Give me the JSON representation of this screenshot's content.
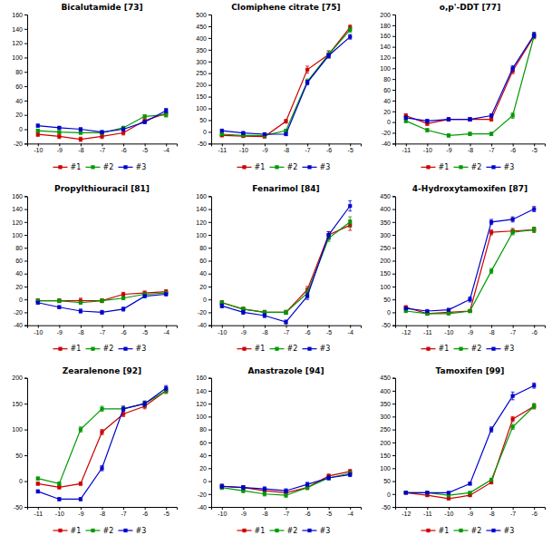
{
  "chart_data": [
    {
      "type": "line",
      "title": "Bicalutamide [73]",
      "x": [
        -10,
        -9,
        -8,
        -7,
        -6,
        -5,
        -4
      ],
      "xlim": [
        -10.5,
        -3.5
      ],
      "xticks": [
        -10,
        -9,
        -8,
        -7,
        -6,
        -5,
        -4
      ],
      "ylim": [
        -20,
        160
      ],
      "yticks": [
        -20,
        0,
        20,
        40,
        60,
        80,
        100,
        120,
        140,
        160
      ],
      "grid": false,
      "legend": "bottom",
      "series": [
        {
          "name": "#1",
          "color": "#cc0000",
          "marker": "square",
          "values": [
            -7,
            -10,
            -14,
            -10,
            -5,
            12,
            22
          ],
          "errors": [
            3,
            3,
            3,
            3,
            3,
            3,
            4
          ]
        },
        {
          "name": "#2",
          "color": "#009900",
          "marker": "square",
          "values": [
            -2,
            -4,
            -5,
            -5,
            2,
            18,
            20
          ],
          "errors": [
            2,
            2,
            2,
            2,
            2,
            2,
            3
          ]
        },
        {
          "name": "#3",
          "color": "#0000cc",
          "marker": "square",
          "values": [
            5,
            2,
            0,
            -4,
            0,
            10,
            26
          ],
          "errors": [
            2,
            2,
            2,
            2,
            2,
            2,
            3
          ]
        }
      ]
    },
    {
      "type": "line",
      "title": "Clomiphene citrate [75]",
      "x": [
        -11,
        -10,
        -9,
        -8,
        -7,
        -6,
        -5
      ],
      "xlim": [
        -11.5,
        -4.5
      ],
      "xticks": [
        -11,
        -10,
        -9,
        -8,
        -7,
        -6,
        -5
      ],
      "ylim": [
        -50,
        500
      ],
      "yticks": [
        -50,
        0,
        50,
        100,
        150,
        200,
        250,
        300,
        350,
        400,
        450,
        500
      ],
      "grid": false,
      "legend": "bottom",
      "series": [
        {
          "name": "#1",
          "color": "#cc0000",
          "marker": "square",
          "values": [
            -15,
            -18,
            -20,
            45,
            265,
            330,
            445
          ],
          "errors": [
            5,
            5,
            5,
            8,
            15,
            15,
            10
          ]
        },
        {
          "name": "#2",
          "color": "#009900",
          "marker": "square",
          "values": [
            -10,
            -15,
            -15,
            5,
            215,
            330,
            435
          ],
          "errors": [
            5,
            5,
            5,
            5,
            10,
            15,
            10
          ]
        },
        {
          "name": "#3",
          "color": "#0000cc",
          "marker": "square",
          "values": [
            5,
            -5,
            -10,
            -10,
            210,
            325,
            405
          ],
          "errors": [
            5,
            5,
            5,
            5,
            10,
            10,
            10
          ]
        }
      ]
    },
    {
      "type": "line",
      "title": "o,p'-DDT [77]",
      "x": [
        -11,
        -10,
        -9,
        -8,
        -7,
        -6,
        -5
      ],
      "xlim": [
        -11.5,
        -4.5
      ],
      "xticks": [
        -11,
        -10,
        -9,
        -8,
        -7,
        -6,
        -5
      ],
      "ylim": [
        -40,
        200
      ],
      "yticks": [
        -40,
        -20,
        0,
        20,
        40,
        60,
        80,
        100,
        120,
        140,
        160,
        180,
        200
      ],
      "grid": false,
      "legend": "bottom",
      "series": [
        {
          "name": "#1",
          "color": "#cc0000",
          "marker": "square",
          "values": [
            12,
            -3,
            5,
            5,
            5,
            95,
            160
          ],
          "errors": [
            3,
            3,
            3,
            3,
            3,
            5,
            5
          ]
        },
        {
          "name": "#2",
          "color": "#009900",
          "marker": "square",
          "values": [
            2,
            -15,
            -25,
            -22,
            -22,
            12,
            160
          ],
          "errors": [
            3,
            3,
            3,
            3,
            3,
            5,
            5
          ]
        },
        {
          "name": "#3",
          "color": "#0000cc",
          "marker": "square",
          "values": [
            8,
            2,
            5,
            5,
            12,
            100,
            162
          ],
          "errors": [
            3,
            3,
            3,
            3,
            3,
            5,
            5
          ]
        }
      ]
    },
    {
      "type": "line",
      "title": "Propylthiouracil [81]",
      "x": [
        -10,
        -9,
        -8,
        -7,
        -6,
        -5,
        -4
      ],
      "xlim": [
        -10.5,
        -3.5
      ],
      "xticks": [
        -10,
        -9,
        -8,
        -7,
        -6,
        -5,
        -4
      ],
      "ylim": [
        -40,
        160
      ],
      "yticks": [
        -40,
        -20,
        0,
        20,
        40,
        60,
        80,
        100,
        120,
        140,
        160
      ],
      "grid": false,
      "legend": "bottom",
      "series": [
        {
          "name": "#1",
          "color": "#cc0000",
          "marker": "square",
          "values": [
            -2,
            -2,
            -2,
            -2,
            8,
            10,
            12
          ],
          "errors": [
            3,
            3,
            4,
            3,
            3,
            3,
            3
          ]
        },
        {
          "name": "#2",
          "color": "#009900",
          "marker": "square",
          "values": [
            -2,
            -2,
            -5,
            -2,
            2,
            8,
            10
          ],
          "errors": [
            2,
            2,
            2,
            2,
            2,
            2,
            2
          ]
        },
        {
          "name": "#3",
          "color": "#0000cc",
          "marker": "square",
          "values": [
            -5,
            -12,
            -18,
            -20,
            -15,
            5,
            8
          ],
          "errors": [
            2,
            2,
            3,
            3,
            3,
            2,
            2
          ]
        }
      ]
    },
    {
      "type": "line",
      "title": "Fenarimol [84]",
      "x": [
        -10,
        -9,
        -8,
        -7,
        -6,
        -5,
        -4
      ],
      "xlim": [
        -10.5,
        -3.5
      ],
      "xticks": [
        -10,
        -9,
        -8,
        -7,
        -6,
        -5,
        -4
      ],
      "ylim": [
        -40,
        160
      ],
      "yticks": [
        -40,
        -20,
        0,
        20,
        40,
        60,
        80,
        100,
        120,
        140,
        160
      ],
      "grid": false,
      "legend": "bottom",
      "series": [
        {
          "name": "#1",
          "color": "#cc0000",
          "marker": "square",
          "values": [
            -5,
            -15,
            -20,
            -20,
            15,
            100,
            115
          ],
          "errors": [
            3,
            3,
            3,
            3,
            5,
            5,
            8
          ]
        },
        {
          "name": "#2",
          "color": "#009900",
          "marker": "square",
          "values": [
            -5,
            -15,
            -20,
            -20,
            10,
            95,
            120
          ],
          "errors": [
            3,
            3,
            3,
            3,
            5,
            5,
            8
          ]
        },
        {
          "name": "#3",
          "color": "#0000cc",
          "marker": "square",
          "values": [
            -10,
            -20,
            -25,
            -35,
            5,
            100,
            145
          ],
          "errors": [
            3,
            3,
            3,
            3,
            5,
            5,
            8
          ]
        }
      ]
    },
    {
      "type": "line",
      "title": "4-Hydroxytamoxifen [87]",
      "x": [
        -12,
        -11,
        -10,
        -9,
        -8,
        -7,
        -6
      ],
      "xlim": [
        -12.5,
        -5.5
      ],
      "xticks": [
        -12,
        -11,
        -10,
        -9,
        -8,
        -7,
        -6
      ],
      "ylim": [
        -50,
        450
      ],
      "yticks": [
        -50,
        0,
        50,
        100,
        150,
        200,
        250,
        300,
        350,
        400,
        450
      ],
      "grid": false,
      "legend": "bottom",
      "series": [
        {
          "name": "#1",
          "color": "#cc0000",
          "marker": "square",
          "values": [
            20,
            -5,
            0,
            5,
            310,
            315,
            320
          ],
          "errors": [
            3,
            3,
            3,
            3,
            10,
            10,
            10
          ]
        },
        {
          "name": "#2",
          "color": "#009900",
          "marker": "square",
          "values": [
            5,
            -5,
            -5,
            5,
            160,
            310,
            320
          ],
          "errors": [
            3,
            3,
            3,
            3,
            10,
            10,
            10
          ]
        },
        {
          "name": "#3",
          "color": "#0000cc",
          "marker": "square",
          "values": [
            15,
            5,
            10,
            50,
            350,
            360,
            400
          ],
          "errors": [
            3,
            3,
            3,
            10,
            10,
            10,
            10
          ]
        }
      ]
    },
    {
      "type": "line",
      "title": "Zearalenone [92]",
      "x": [
        -11,
        -10,
        -9,
        -8,
        -7,
        -6,
        -5
      ],
      "xlim": [
        -11.5,
        -4.5
      ],
      "xticks": [
        -11,
        -10,
        -9,
        -8,
        -7,
        -6,
        -5
      ],
      "ylim": [
        -50,
        200
      ],
      "yticks": [
        -50,
        0,
        50,
        100,
        150,
        200
      ],
      "grid": false,
      "legend": "bottom",
      "series": [
        {
          "name": "#1",
          "color": "#cc0000",
          "marker": "square",
          "values": [
            -5,
            -12,
            -5,
            95,
            130,
            145,
            175
          ],
          "errors": [
            3,
            3,
            3,
            5,
            5,
            5,
            5
          ]
        },
        {
          "name": "#2",
          "color": "#009900",
          "marker": "square",
          "values": [
            5,
            -5,
            100,
            140,
            140,
            150,
            175
          ],
          "errors": [
            3,
            3,
            5,
            5,
            5,
            5,
            5
          ]
        },
        {
          "name": "#3",
          "color": "#0000cc",
          "marker": "square",
          "values": [
            -20,
            -35,
            -35,
            25,
            140,
            150,
            180
          ],
          "errors": [
            3,
            3,
            3,
            5,
            5,
            5,
            5
          ]
        }
      ]
    },
    {
      "type": "line",
      "title": "Anastrazole [94]",
      "x": [
        -10,
        -9,
        -8,
        -7,
        -6,
        -5,
        -4
      ],
      "xlim": [
        -10.5,
        -3.5
      ],
      "xticks": [
        -10,
        -9,
        -8,
        -7,
        -6,
        -5,
        -4
      ],
      "ylim": [
        -40,
        160
      ],
      "yticks": [
        -40,
        -20,
        0,
        20,
        40,
        60,
        80,
        100,
        120,
        140,
        160
      ],
      "grid": false,
      "legend": "bottom",
      "series": [
        {
          "name": "#1",
          "color": "#cc0000",
          "marker": "square",
          "values": [
            -8,
            -10,
            -15,
            -18,
            -10,
            8,
            15
          ],
          "errors": [
            3,
            3,
            3,
            3,
            3,
            3,
            3
          ]
        },
        {
          "name": "#2",
          "color": "#009900",
          "marker": "square",
          "values": [
            -10,
            -15,
            -20,
            -22,
            -10,
            5,
            12
          ],
          "errors": [
            3,
            3,
            3,
            3,
            3,
            3,
            3
          ]
        },
        {
          "name": "#3",
          "color": "#0000cc",
          "marker": "square",
          "values": [
            -8,
            -10,
            -12,
            -15,
            -5,
            5,
            10
          ],
          "errors": [
            3,
            3,
            3,
            3,
            3,
            3,
            3
          ]
        }
      ]
    },
    {
      "type": "line",
      "title": "Tamoxifen [99]",
      "x": [
        -12,
        -11,
        -10,
        -9,
        -8,
        -7,
        -6
      ],
      "xlim": [
        -12.5,
        -5.5
      ],
      "xticks": [
        -12,
        -11,
        -10,
        -9,
        -8,
        -7,
        -6
      ],
      "ylim": [
        -50,
        450
      ],
      "yticks": [
        -50,
        0,
        50,
        100,
        150,
        200,
        250,
        300,
        350,
        400,
        450
      ],
      "grid": false,
      "legend": "bottom",
      "series": [
        {
          "name": "#1",
          "color": "#cc0000",
          "marker": "square",
          "values": [
            5,
            -5,
            -18,
            -5,
            45,
            290,
            340
          ],
          "errors": [
            3,
            3,
            3,
            3,
            5,
            10,
            10
          ]
        },
        {
          "name": "#2",
          "color": "#009900",
          "marker": "square",
          "values": [
            5,
            5,
            -5,
            5,
            55,
            260,
            340
          ],
          "errors": [
            3,
            3,
            3,
            3,
            5,
            10,
            10
          ]
        },
        {
          "name": "#3",
          "color": "#0000cc",
          "marker": "square",
          "values": [
            5,
            5,
            5,
            40,
            250,
            380,
            420
          ],
          "errors": [
            3,
            3,
            3,
            5,
            10,
            15,
            10
          ]
        }
      ]
    }
  ]
}
